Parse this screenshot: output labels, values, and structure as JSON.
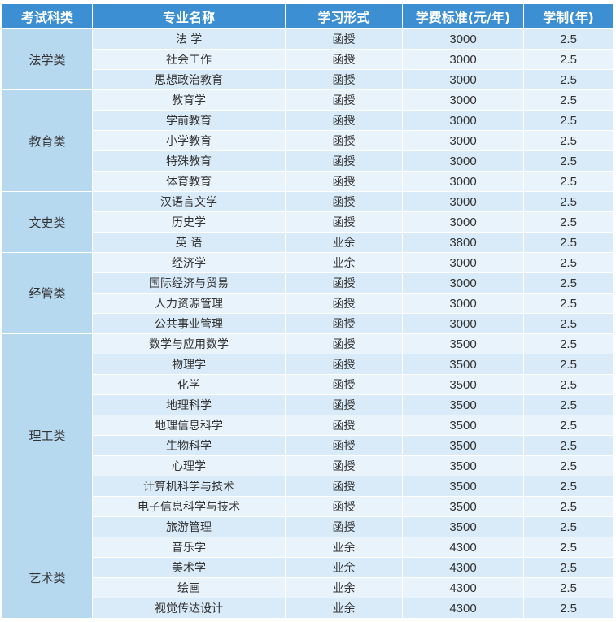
{
  "headers": [
    "考试科类",
    "专业名称",
    "学习形式",
    "学费标准(元/年)",
    "学制(年)"
  ],
  "groups": [
    {
      "category": "法学类",
      "rows": [
        [
          "法 学",
          "函授",
          "3000",
          "2.5"
        ],
        [
          "社会工作",
          "函授",
          "3000",
          "2.5"
        ],
        [
          "思想政治教育",
          "函授",
          "3000",
          "2.5"
        ]
      ]
    },
    {
      "category": "教育类",
      "rows": [
        [
          "教育学",
          "函授",
          "3000",
          "2.5"
        ],
        [
          "学前教育",
          "函授",
          "3000",
          "2.5"
        ],
        [
          "小学教育",
          "函授",
          "3000",
          "2.5"
        ],
        [
          "特殊教育",
          "函授",
          "3000",
          "2.5"
        ],
        [
          "体育教育",
          "函授",
          "3000",
          "2.5"
        ]
      ]
    },
    {
      "category": "文史类",
      "rows": [
        [
          "汉语言文学",
          "函授",
          "3000",
          "2.5"
        ],
        [
          "历史学",
          "函授",
          "3000",
          "2.5"
        ],
        [
          "英 语",
          "业余",
          "3800",
          "2.5"
        ]
      ]
    },
    {
      "category": "经管类",
      "rows": [
        [
          "经济学",
          "业余",
          "3000",
          "2.5"
        ],
        [
          "国际经济与贸易",
          "函授",
          "3000",
          "2.5"
        ],
        [
          "人力资源管理",
          "函授",
          "3000",
          "2.5"
        ],
        [
          "公共事业管理",
          "函授",
          "3000",
          "2.5"
        ]
      ]
    },
    {
      "category": "理工类",
      "rows": [
        [
          "数学与应用数学",
          "函授",
          "3500",
          "2.5"
        ],
        [
          "物理学",
          "函授",
          "3500",
          "2.5"
        ],
        [
          "化学",
          "函授",
          "3500",
          "2.5"
        ],
        [
          "地理科学",
          "函授",
          "3500",
          "2.5"
        ],
        [
          "地理信息科学",
          "函授",
          "3500",
          "2.5"
        ],
        [
          "生物科学",
          "函授",
          "3500",
          "2.5"
        ],
        [
          "心理学",
          "函授",
          "3500",
          "2.5"
        ],
        [
          "计算机科学与技术",
          "函授",
          "3500",
          "2.5"
        ],
        [
          "电子信息科学与技术",
          "函授",
          "3500",
          "2.5"
        ],
        [
          "旅游管理",
          "函授",
          "3500",
          "2.5"
        ]
      ]
    },
    {
      "category": "艺术类",
      "rows": [
        [
          "音乐学",
          "业余",
          "4300",
          "2.5"
        ],
        [
          "美术学",
          "业余",
          "4300",
          "2.5"
        ],
        [
          "绘画",
          "业余",
          "4300",
          "2.5"
        ],
        [
          "视觉传达设计",
          "业余",
          "4300",
          "2.5"
        ]
      ]
    }
  ]
}
